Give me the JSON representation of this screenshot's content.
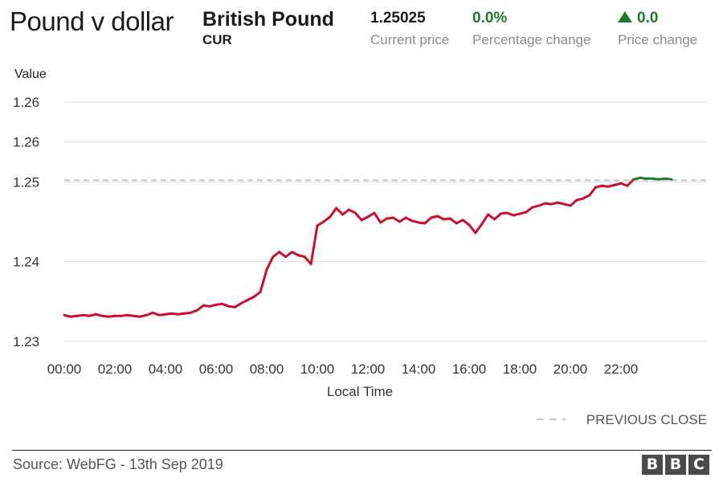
{
  "header": {
    "title": "Pound v dollar",
    "instrument": "British Pound",
    "instrument_code": "CUR",
    "stats": [
      {
        "key": "price",
        "value": "1.25025",
        "label": "Current price"
      },
      {
        "key": "pct",
        "value": "0.0%",
        "label": "Percentage change"
      },
      {
        "key": "chg",
        "value": "0.0",
        "label": "Price change",
        "direction": "up-triangle-icon"
      }
    ]
  },
  "footer": {
    "source": "Source: WebFG - 13th Sep 2019",
    "logo_letters": [
      "B",
      "B",
      "C"
    ]
  },
  "colors": {
    "below_close": "#c8102e",
    "above_close": "#1e7b2e",
    "grid": "#d9d9d9",
    "previous_close": "#c8c8c8"
  },
  "chart_data": {
    "type": "line",
    "ylabel": "Value",
    "xlabel": "Local Time",
    "y_ticks": [
      {
        "value": 1.23,
        "label": "1.23"
      },
      {
        "value": 1.24,
        "label": "1.24"
      },
      {
        "value": 1.25,
        "label": "1.25"
      },
      {
        "value": 1.255,
        "label": "1.26"
      },
      {
        "value": 1.26,
        "label": "1.26"
      }
    ],
    "x_ticks": [
      "00:00",
      "02:00",
      "04:00",
      "06:00",
      "08:00",
      "10:00",
      "12:00",
      "14:00",
      "16:00",
      "18:00",
      "20:00",
      "22:00"
    ],
    "x_range_hours": [
      0,
      24
    ],
    "ylim": [
      1.2295,
      1.2615
    ],
    "grid": true,
    "previous_close": 1.2502,
    "legend": {
      "label": "PREVIOUS CLOSE",
      "position": "bottom-right"
    },
    "series": [
      {
        "x": [
          0,
          0.25,
          0.5,
          0.75,
          1,
          1.25,
          1.5,
          1.75,
          2,
          2.25,
          2.5,
          2.75,
          3,
          3.25,
          3.5,
          3.75,
          4,
          4.25,
          4.5,
          4.75,
          5,
          5.25,
          5.5,
          5.75,
          6,
          6.25,
          6.5,
          6.75,
          7,
          7.25,
          7.5,
          7.75,
          8,
          8.25,
          8.5,
          8.75,
          9,
          9.25,
          9.5,
          9.75,
          10,
          10.25,
          10.5,
          10.75,
          11,
          11.25,
          11.5,
          11.75,
          12,
          12.25,
          12.5,
          12.75,
          13,
          13.25,
          13.5,
          13.75,
          14,
          14.25,
          14.5,
          14.75,
          15,
          15.25,
          15.5,
          15.75,
          16,
          16.25,
          16.5,
          16.75,
          17,
          17.25,
          17.5,
          17.75,
          18,
          18.25,
          18.5,
          18.75,
          19,
          19.25,
          19.5,
          19.75,
          20,
          20.25,
          20.5,
          20.75,
          21,
          21.25,
          21.5,
          21.75,
          22,
          22.25,
          22.5,
          22.75,
          23,
          23.25,
          23.5,
          23.75,
          24
        ],
        "y": [
          1.2333,
          1.2331,
          1.2332,
          1.2333,
          1.2332,
          1.2334,
          1.2332,
          1.2331,
          1.2332,
          1.2332,
          1.2333,
          1.2332,
          1.2331,
          1.2333,
          1.2336,
          1.2333,
          1.2334,
          1.2335,
          1.2334,
          1.2335,
          1.2336,
          1.2339,
          1.2345,
          1.2344,
          1.2346,
          1.2347,
          1.2344,
          1.2343,
          1.2348,
          1.2352,
          1.2356,
          1.2362,
          1.239,
          1.2406,
          1.2412,
          1.2406,
          1.2412,
          1.2408,
          1.2406,
          1.2397,
          1.2445,
          1.245,
          1.2456,
          1.2467,
          1.2459,
          1.2465,
          1.2461,
          1.2452,
          1.2456,
          1.2461,
          1.2449,
          1.2454,
          1.2455,
          1.245,
          1.2455,
          1.2451,
          1.2449,
          1.2448,
          1.2455,
          1.2457,
          1.2453,
          1.2454,
          1.2448,
          1.2452,
          1.2446,
          1.2436,
          1.2447,
          1.2459,
          1.2453,
          1.246,
          1.2461,
          1.2458,
          1.246,
          1.2462,
          1.2468,
          1.247,
          1.2473,
          1.2472,
          1.2474,
          1.2472,
          1.247,
          1.2477,
          1.2479,
          1.2483,
          1.2493,
          1.2495,
          1.2494,
          1.2496,
          1.2498,
          1.2495,
          1.2503,
          1.2505,
          1.2504,
          1.2504,
          1.2503,
          1.2504,
          1.2503
        ]
      }
    ]
  }
}
